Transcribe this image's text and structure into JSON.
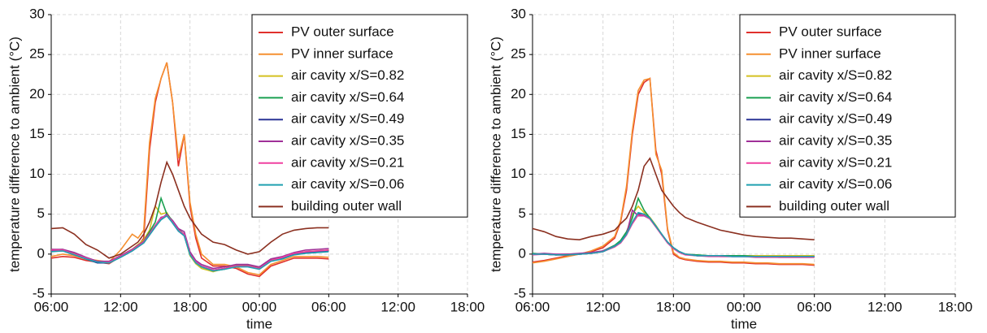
{
  "chart_data": [
    {
      "type": "line",
      "x_label": "time",
      "y_label": "temperature difference to ambient (°C)",
      "x": [
        0,
        1,
        2,
        3,
        4,
        5,
        6,
        7,
        7.5,
        8,
        8.5,
        9,
        9.5,
        10,
        10.5,
        11,
        11.5,
        12,
        12.5,
        13,
        14,
        15,
        16,
        17,
        18,
        19,
        20,
        21,
        22,
        23,
        24
      ],
      "xlim": [
        0,
        36
      ],
      "xticks": [
        {
          "value": 0,
          "label": "06:00"
        },
        {
          "value": 6,
          "label": "12:00"
        },
        {
          "value": 12,
          "label": "18:00"
        },
        {
          "value": 18,
          "label": "00:00"
        },
        {
          "value": 24,
          "label": "06:00"
        },
        {
          "value": 30,
          "label": "12:00"
        },
        {
          "value": 36,
          "label": "18:00"
        }
      ],
      "ylim": [
        -5,
        30
      ],
      "yticks": [
        -5,
        0,
        5,
        10,
        15,
        20,
        25,
        30
      ],
      "grid": true,
      "legend": "upper right",
      "series": [
        {
          "name": "PV outer surface",
          "color": "#e0302c",
          "values": [
            -0.5,
            -0.3,
            -0.4,
            -0.8,
            -1,
            -1.2,
            -0.3,
            0.5,
            1,
            2,
            13,
            19,
            22,
            24,
            19,
            11,
            15,
            6,
            2,
            -0.5,
            -1.5,
            -1.5,
            -1.8,
            -2.5,
            -2.8,
            -1.5,
            -1,
            -0.5,
            -0.5,
            -0.5,
            -0.6
          ]
        },
        {
          "name": "PV inner surface",
          "color": "#f59030",
          "values": [
            -0.3,
            0,
            -0.2,
            -0.6,
            -0.8,
            -1,
            0.5,
            2.5,
            2,
            3,
            14,
            19.5,
            22,
            24,
            19,
            12,
            15,
            6.5,
            2.5,
            0,
            -1.3,
            -1.3,
            -1.6,
            -2.3,
            -2.6,
            -1.3,
            -0.8,
            -0.3,
            -0.3,
            -0.3,
            -0.4
          ]
        },
        {
          "name": "air cavity x/S=0.82",
          "color": "#d4c020",
          "values": [
            0.6,
            0.5,
            0.1,
            -0.5,
            -1,
            -1,
            -0.2,
            0.6,
            1.2,
            1.8,
            3,
            6,
            5,
            5.2,
            4,
            3,
            2.4,
            -0.2,
            -1.2,
            -1.8,
            -2.2,
            -1.8,
            -1.4,
            -1.4,
            -1.7,
            -0.7,
            -0.4,
            0.1,
            0.3,
            0.4,
            0.5
          ]
        },
        {
          "name": "air cavity x/S=0.64",
          "color": "#1aa050",
          "values": [
            0.5,
            0.6,
            0,
            -0.6,
            -1.1,
            -1,
            -0.3,
            0.5,
            1,
            1.6,
            2.8,
            4,
            7,
            5,
            4.2,
            3.1,
            2.5,
            0,
            -1,
            -1.6,
            -2.1,
            -1.9,
            -1.5,
            -1.5,
            -1.8,
            -0.8,
            -0.5,
            0,
            0.2,
            0.3,
            0.4
          ]
        },
        {
          "name": "air cavity x/S=0.49",
          "color": "#2a3496",
          "values": [
            0.4,
            0.4,
            -0.1,
            -0.6,
            -1.1,
            -1.1,
            -0.4,
            0.4,
            0.9,
            1.4,
            2.4,
            3.4,
            4.4,
            5,
            3.9,
            2.9,
            2.3,
            0,
            -1,
            -1.5,
            -2,
            -1.8,
            -1.5,
            -1.5,
            -1.8,
            -0.8,
            -0.5,
            0,
            0.2,
            0.3,
            0.4
          ]
        },
        {
          "name": "air cavity x/S=0.35",
          "color": "#a03098",
          "values": [
            0.6,
            0.6,
            0.2,
            -0.4,
            -0.9,
            -0.9,
            -0.2,
            0.6,
            1.1,
            1.6,
            2.6,
            3.6,
            4.6,
            4.8,
            4.2,
            3.2,
            2.8,
            0.3,
            -0.8,
            -1.3,
            -1.8,
            -1.6,
            -1.3,
            -1.3,
            -1.6,
            -0.6,
            -0.3,
            0.2,
            0.5,
            0.6,
            0.7
          ]
        },
        {
          "name": "air cavity x/S=0.21",
          "color": "#f040a0",
          "values": [
            0.5,
            0.5,
            0,
            -0.5,
            -1,
            -1,
            -0.3,
            0.5,
            1,
            1.5,
            2.5,
            3.6,
            4.5,
            4.9,
            4,
            3,
            2.5,
            0,
            -1,
            -1.5,
            -2,
            -1.8,
            -1.5,
            -1.5,
            -1.8,
            -0.8,
            -0.4,
            0.1,
            0.3,
            0.4,
            0.5
          ]
        },
        {
          "name": "air cavity x/S=0.06",
          "color": "#20a0b0",
          "values": [
            0.3,
            0.4,
            -0.1,
            -0.6,
            -1,
            -1.1,
            -0.4,
            0.4,
            0.9,
            1.4,
            2.4,
            3.4,
            4.3,
            4.8,
            3.9,
            2.9,
            2.3,
            -0.1,
            -1.1,
            -1.6,
            -2.1,
            -1.9,
            -1.6,
            -1.6,
            -1.9,
            -0.9,
            -0.6,
            -0.1,
            0.1,
            0.2,
            0.3
          ]
        },
        {
          "name": "building outer wall",
          "color": "#8b3020",
          "values": [
            3.2,
            3.3,
            2.5,
            1.2,
            0.5,
            -0.5,
            0,
            1,
            1.5,
            2.5,
            4,
            6,
            9,
            11.5,
            10,
            8,
            6,
            4.5,
            3.5,
            2.5,
            1.5,
            1.2,
            0.5,
            0,
            0.3,
            1.5,
            2.5,
            3,
            3.2,
            3.3,
            3.3
          ]
        }
      ]
    },
    {
      "type": "line",
      "x_label": "time",
      "y_label": "temperature difference to ambient (°C)",
      "x": [
        0,
        1,
        2,
        3,
        4,
        5,
        6,
        7,
        7.5,
        8,
        8.5,
        9,
        9.5,
        10,
        10.5,
        11,
        11.5,
        12,
        12.5,
        13,
        14,
        15,
        16,
        17,
        18,
        19,
        20,
        21,
        22,
        23,
        24
      ],
      "xlim": [
        0,
        36
      ],
      "xticks": [
        {
          "value": 0,
          "label": "06:00"
        },
        {
          "value": 6,
          "label": "12:00"
        },
        {
          "value": 12,
          "label": "18:00"
        },
        {
          "value": 18,
          "label": "00:00"
        },
        {
          "value": 24,
          "label": "06:00"
        },
        {
          "value": 30,
          "label": "12:00"
        },
        {
          "value": 36,
          "label": "18:00"
        }
      ],
      "ylim": [
        -5,
        30
      ],
      "yticks": [
        -5,
        0,
        5,
        10,
        15,
        20,
        25,
        30
      ],
      "grid": true,
      "legend": "upper right",
      "series": [
        {
          "name": "PV outer surface",
          "color": "#e0302c",
          "values": [
            -1,
            -0.8,
            -0.5,
            -0.2,
            0,
            0.3,
            0.8,
            2,
            4,
            8,
            15,
            20,
            21.5,
            22,
            13,
            10,
            3,
            0,
            -0.5,
            -0.7,
            -0.9,
            -1,
            -1,
            -1.1,
            -1.1,
            -1.2,
            -1.2,
            -1.3,
            -1.3,
            -1.3,
            -1.4
          ]
        },
        {
          "name": "PV inner surface",
          "color": "#f59030",
          "values": [
            -1.1,
            -0.9,
            -0.6,
            -0.3,
            0,
            0.4,
            1,
            2.2,
            4.2,
            8.5,
            15.5,
            20.5,
            21.8,
            22,
            12.5,
            10.5,
            3.2,
            0.2,
            -0.4,
            -0.6,
            -0.8,
            -0.9,
            -0.9,
            -1,
            -1,
            -1.1,
            -1.1,
            -1.2,
            -1.2,
            -1.2,
            -1.3
          ]
        },
        {
          "name": "air cavity x/S=0.82",
          "color": "#d4c020",
          "values": [
            0,
            0,
            -0.1,
            -0.1,
            0,
            0.1,
            0.3,
            1.1,
            1.6,
            2.7,
            5,
            6,
            5.2,
            4.6,
            3.6,
            2.5,
            1.5,
            0.8,
            0.3,
            0,
            -0.2,
            -0.2,
            -0.2,
            -0.2,
            -0.2,
            -0.2,
            -0.2,
            -0.2,
            -0.2,
            -0.2,
            -0.2
          ]
        },
        {
          "name": "air cavity x/S=0.64",
          "color": "#1aa050",
          "values": [
            0.1,
            0,
            -0.1,
            0,
            0,
            0.1,
            0.4,
            1.1,
            1.7,
            2.8,
            4.5,
            7,
            5.5,
            4.5,
            3.5,
            2.4,
            1.5,
            0.8,
            0.3,
            0,
            -0.1,
            -0.2,
            -0.2,
            -0.2,
            -0.2,
            -0.3,
            -0.3,
            -0.3,
            -0.3,
            -0.3,
            -0.3
          ]
        },
        {
          "name": "air cavity x/S=0.49",
          "color": "#2a3496",
          "values": [
            0,
            0,
            -0.1,
            -0.1,
            0,
            0.1,
            0.3,
            1,
            1.5,
            2.5,
            4,
            5,
            5,
            4.5,
            3.5,
            2.5,
            1.5,
            0.8,
            0.3,
            0,
            -0.2,
            -0.2,
            -0.2,
            -0.3,
            -0.3,
            -0.3,
            -0.3,
            -0.3,
            -0.3,
            -0.3,
            -0.3
          ]
        },
        {
          "name": "air cavity x/S=0.35",
          "color": "#a03098",
          "values": [
            0,
            0.1,
            0,
            0,
            0.1,
            0.2,
            0.4,
            1,
            1.4,
            2.4,
            5.5,
            4.8,
            4.8,
            4.4,
            3.4,
            2.4,
            1.4,
            0.7,
            0.2,
            0,
            -0.2,
            -0.2,
            -0.3,
            -0.3,
            -0.3,
            -0.3,
            -0.3,
            -0.4,
            -0.4,
            -0.4,
            -0.4
          ]
        },
        {
          "name": "air cavity x/S=0.21",
          "color": "#f040a0",
          "values": [
            -0.1,
            0,
            -0.1,
            -0.1,
            0,
            0.1,
            0.3,
            0.9,
            1.4,
            2.4,
            3.8,
            4.9,
            4.9,
            4.4,
            3.4,
            2.4,
            1.4,
            0.7,
            0.2,
            -0.1,
            -0.2,
            -0.3,
            -0.3,
            -0.3,
            -0.3,
            -0.4,
            -0.4,
            -0.4,
            -0.4,
            -0.4,
            -0.4
          ]
        },
        {
          "name": "air cavity x/S=0.06",
          "color": "#20a0b0",
          "values": [
            0,
            0,
            -0.1,
            -0.1,
            0,
            0.1,
            0.3,
            1,
            1.5,
            2.5,
            4,
            5.2,
            5,
            4.5,
            3.5,
            2.5,
            1.5,
            0.8,
            0.3,
            0,
            -0.2,
            -0.2,
            -0.2,
            -0.3,
            -0.3,
            -0.3,
            -0.3,
            -0.3,
            -0.3,
            -0.3,
            -0.3
          ]
        },
        {
          "name": "building outer wall",
          "color": "#8b3020",
          "values": [
            3.2,
            2.8,
            2.2,
            1.9,
            1.8,
            2.2,
            2.5,
            3,
            3.8,
            4.5,
            6,
            8,
            11,
            12,
            10,
            8,
            7,
            6,
            5.2,
            4.6,
            4,
            3.5,
            3,
            2.7,
            2.4,
            2.2,
            2.1,
            2,
            2,
            1.9,
            1.8
          ]
        }
      ]
    }
  ]
}
